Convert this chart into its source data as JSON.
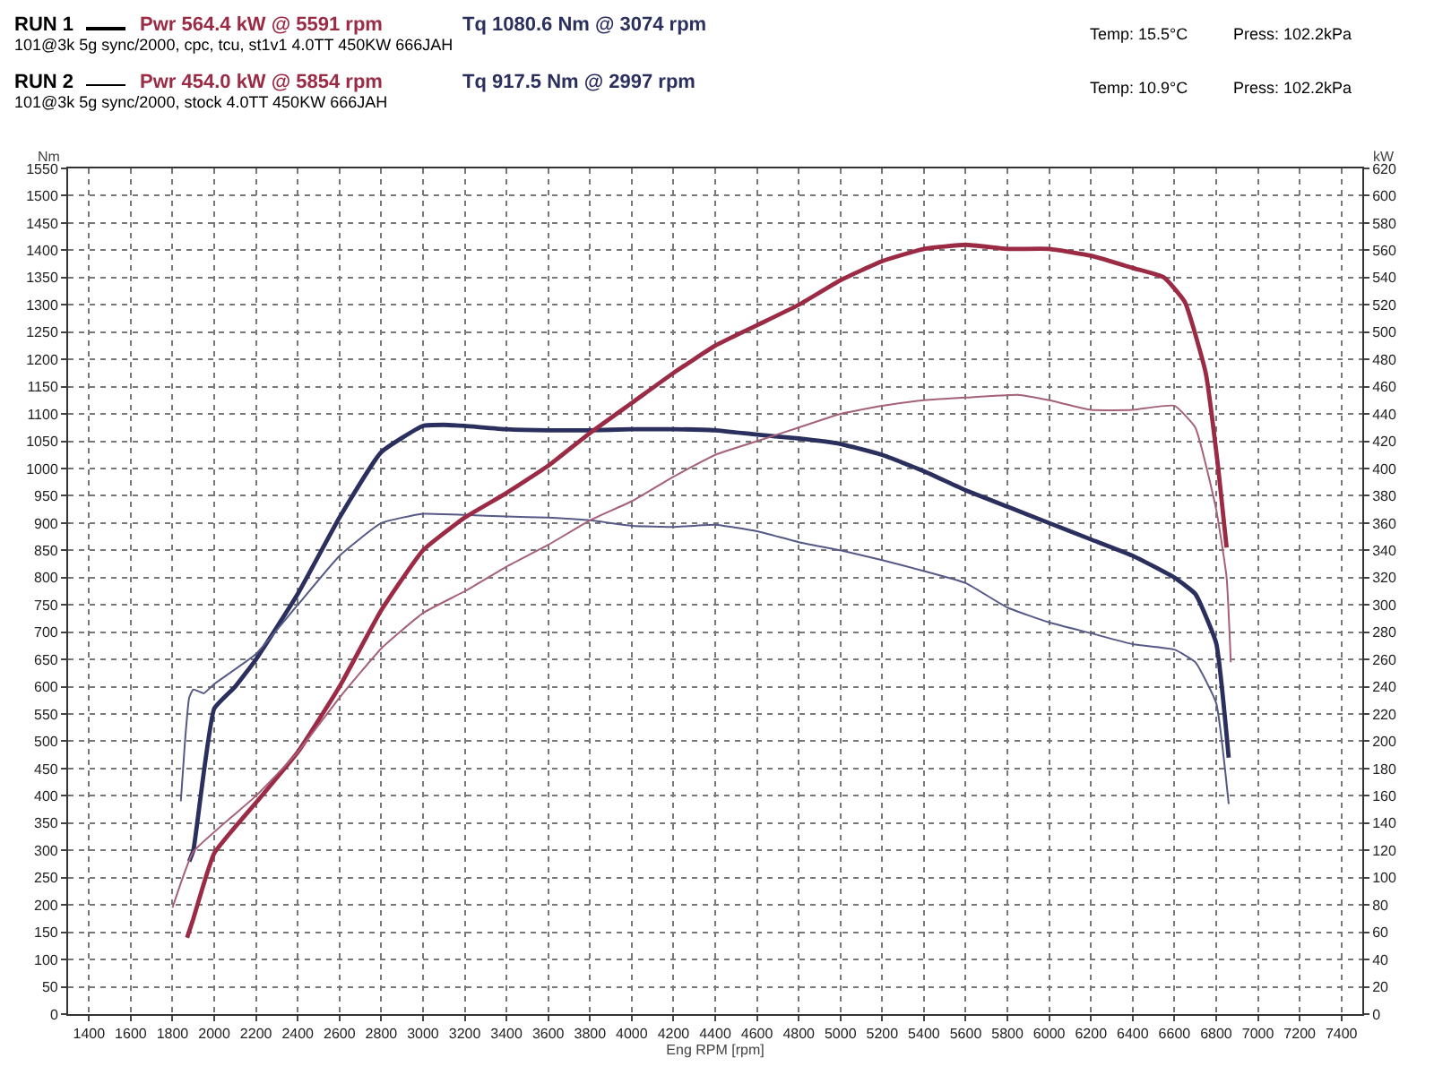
{
  "chart_data": {
    "type": "line",
    "xlabel": "Eng RPM [rpm]",
    "ylabel": "Nm",
    "y2label": "kW",
    "annotations": [
      "RUN 1",
      "Pwr  564.4 kW @ 5591 rpm",
      "Tq 1080.6 Nm @ 3074 rpm",
      "101@3k 5g sync/2000, cpc, tcu, st1v1 4.0TT 450KW 666JAH",
      "Temp: 15.5°C",
      "Press: 102.2kPa",
      "RUN 2",
      "Pwr  454.0 kW @ 5854 rpm",
      "Tq 917.5 Nm @ 2997 rpm",
      "101@3k 5g sync/2000, stock 4.0TT 450KW 666JAH",
      "Temp: 10.9°C",
      "Press: 102.2kPa"
    ],
    "series": [
      {
        "color": "#2b2f5e",
        "x": [
          1880,
          1900,
          2000,
          2100,
          2200,
          2400,
          2600,
          2800,
          3000,
          3100,
          3200,
          3400,
          3600,
          3800,
          4000,
          4200,
          4400,
          4600,
          4800,
          5000,
          5200,
          5400,
          5600,
          5800,
          6000,
          6200,
          6400,
          6600,
          6700,
          6800,
          6860
        ],
        "values": [
          280,
          300,
          560,
          600,
          650,
          770,
          910,
          1030,
          1078,
          1080,
          1078,
          1072,
          1070,
          1070,
          1072,
          1072,
          1070,
          1062,
          1055,
          1045,
          1025,
          995,
          960,
          930,
          900,
          870,
          840,
          800,
          770,
          680,
          470
        ]
      },
      {
        "color": "#9b2a45",
        "axis": "y2",
        "x": [
          1870,
          1900,
          2000,
          2200,
          2400,
          2600,
          2800,
          3000,
          3200,
          3400,
          3600,
          3800,
          4000,
          4200,
          4400,
          4600,
          4800,
          5000,
          5200,
          5400,
          5600,
          5800,
          6000,
          6200,
          6400,
          6550,
          6650,
          6750,
          6810,
          6850
        ],
        "values": [
          56,
          70,
          118,
          155,
          192,
          240,
          296,
          340,
          364,
          382,
          402,
          426,
          448,
          470,
          490,
          505,
          520,
          538,
          552,
          561,
          564,
          561,
          561,
          556,
          547,
          540,
          522,
          470,
          400,
          342
        ]
      },
      {
        "color": "#555985",
        "x": [
          1840,
          1860,
          1880,
          1900,
          1950,
          2000,
          2200,
          2400,
          2600,
          2800,
          3000,
          3200,
          3400,
          3600,
          3800,
          4000,
          4200,
          4400,
          4600,
          4800,
          5000,
          5200,
          5400,
          5600,
          5800,
          6000,
          6200,
          6400,
          6600,
          6700,
          6800,
          6860
        ],
        "values": [
          390,
          500,
          580,
          595,
          588,
          605,
          660,
          750,
          840,
          900,
          917,
          915,
          912,
          910,
          905,
          895,
          893,
          897,
          885,
          865,
          850,
          832,
          812,
          790,
          745,
          718,
          698,
          678,
          668,
          645,
          570,
          385
        ]
      },
      {
        "color": "#a5607a",
        "axis": "y2",
        "x": [
          1800,
          1900,
          2200,
          2400,
          2600,
          2800,
          3000,
          3200,
          3400,
          3600,
          3800,
          4000,
          4200,
          4400,
          4600,
          4800,
          5000,
          5200,
          5400,
          5600,
          5850,
          6000,
          6200,
          6400,
          6600,
          6700,
          6800,
          6850,
          6870
        ],
        "values": [
          78,
          119,
          160,
          192,
          232,
          268,
          294,
          310,
          328,
          344,
          362,
          376,
          394,
          410,
          420,
          430,
          440,
          446,
          450,
          452,
          454,
          450,
          443,
          443,
          446,
          430,
          370,
          320,
          258
        ]
      }
    ],
    "xlim": [
      1300,
      7500
    ],
    "xticks": [
      1400,
      1600,
      1800,
      2000,
      2200,
      2400,
      2600,
      2800,
      3000,
      3200,
      3400,
      3600,
      3800,
      4000,
      4200,
      4400,
      4600,
      4800,
      5000,
      5200,
      5400,
      5600,
      5800,
      6000,
      6200,
      6400,
      6600,
      6800,
      7000,
      7200,
      7400
    ],
    "ylim": [
      0,
      1550
    ],
    "yticks": [
      0,
      50,
      100,
      150,
      200,
      250,
      300,
      350,
      400,
      450,
      500,
      550,
      600,
      650,
      700,
      750,
      800,
      850,
      900,
      950,
      1000,
      1050,
      1100,
      1150,
      1200,
      1250,
      1300,
      1350,
      1400,
      1450,
      1500,
      1550
    ],
    "y2lim": [
      0,
      620
    ],
    "y2ticks": [
      0,
      20,
      40,
      60,
      80,
      100,
      120,
      140,
      160,
      180,
      200,
      220,
      240,
      260,
      280,
      300,
      320,
      340,
      360,
      380,
      400,
      420,
      440,
      460,
      480,
      500,
      520,
      540,
      560,
      580,
      600,
      620
    ],
    "grid": true,
    "marker": "none",
    "line_style": "solid"
  }
}
